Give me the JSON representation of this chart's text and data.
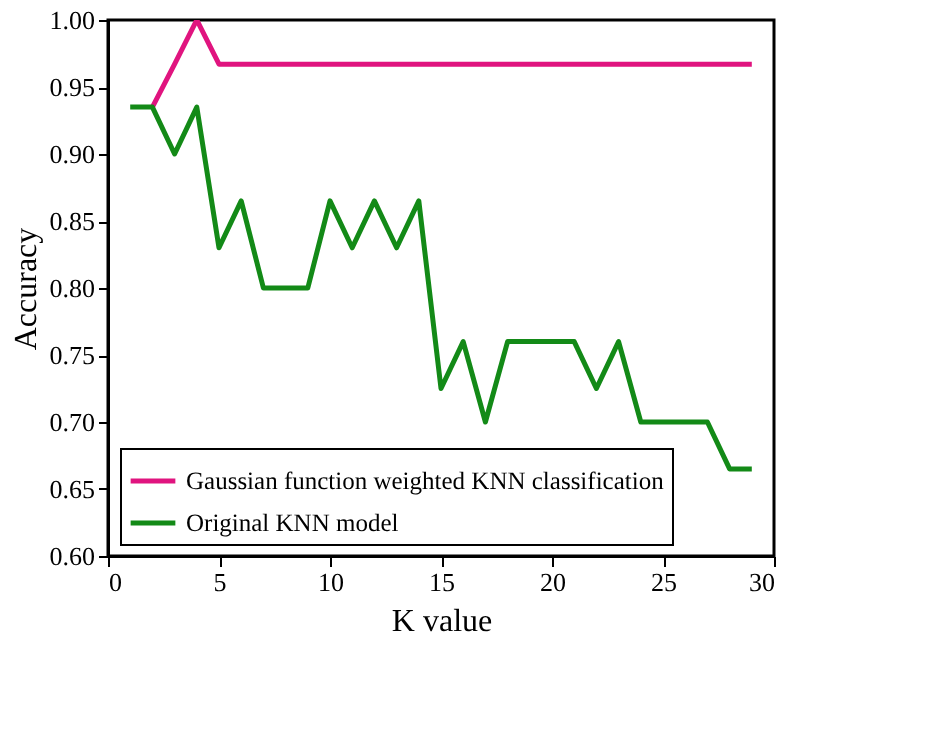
{
  "chart_data": {
    "type": "line",
    "xlabel": "K value",
    "ylabel": "Accuracy",
    "xlim": [
      0,
      30
    ],
    "xticks": [
      0,
      5,
      10,
      15,
      20,
      25,
      30
    ],
    "ylim": [
      0.6,
      1.0
    ],
    "yticks": [
      {
        "value": 0.6,
        "label": "0.60"
      },
      {
        "value": 0.65,
        "label": "0.65"
      },
      {
        "value": 0.7,
        "label": "0.70"
      },
      {
        "value": 0.75,
        "label": "0.75"
      },
      {
        "value": 0.8,
        "label": "0.80"
      },
      {
        "value": 0.85,
        "label": "0.85"
      },
      {
        "value": 0.9,
        "label": "0.90"
      },
      {
        "value": 0.95,
        "label": "0.95"
      },
      {
        "value": 1.0,
        "label": "1.00"
      }
    ],
    "grid": false,
    "legend": "bottom left",
    "line_style": "solid",
    "marker": "none",
    "series": [
      {
        "name": "Gaussian function weighted KNN classification",
        "color": "#e0147f",
        "x": [
          2,
          3,
          4,
          5,
          6,
          7,
          8,
          9,
          10,
          11,
          12,
          13,
          14,
          15,
          16,
          17,
          18,
          19,
          20,
          21,
          22,
          23,
          24,
          25,
          26,
          27,
          28,
          29
        ],
        "values": [
          0.935,
          0.967,
          1.0,
          0.967,
          0.967,
          0.967,
          0.967,
          0.967,
          0.967,
          0.967,
          0.967,
          0.967,
          0.967,
          0.967,
          0.967,
          0.967,
          0.967,
          0.967,
          0.967,
          0.967,
          0.967,
          0.967,
          0.967,
          0.967,
          0.967,
          0.967,
          0.967,
          0.967
        ]
      },
      {
        "name": "Original KNN model",
        "color": "#138a17",
        "x": [
          1,
          2,
          3,
          4,
          5,
          6,
          7,
          8,
          9,
          10,
          11,
          12,
          13,
          14,
          15,
          16,
          17,
          18,
          19,
          20,
          21,
          22,
          23,
          24,
          25,
          26,
          27,
          28,
          29
        ],
        "values": [
          0.935,
          0.935,
          0.9,
          0.935,
          0.83,
          0.865,
          0.8,
          0.8,
          0.8,
          0.865,
          0.83,
          0.865,
          0.83,
          0.865,
          0.725,
          0.76,
          0.7,
          0.76,
          0.76,
          0.76,
          0.76,
          0.725,
          0.76,
          0.7,
          0.7,
          0.7,
          0.7,
          0.665,
          0.665
        ]
      }
    ]
  }
}
